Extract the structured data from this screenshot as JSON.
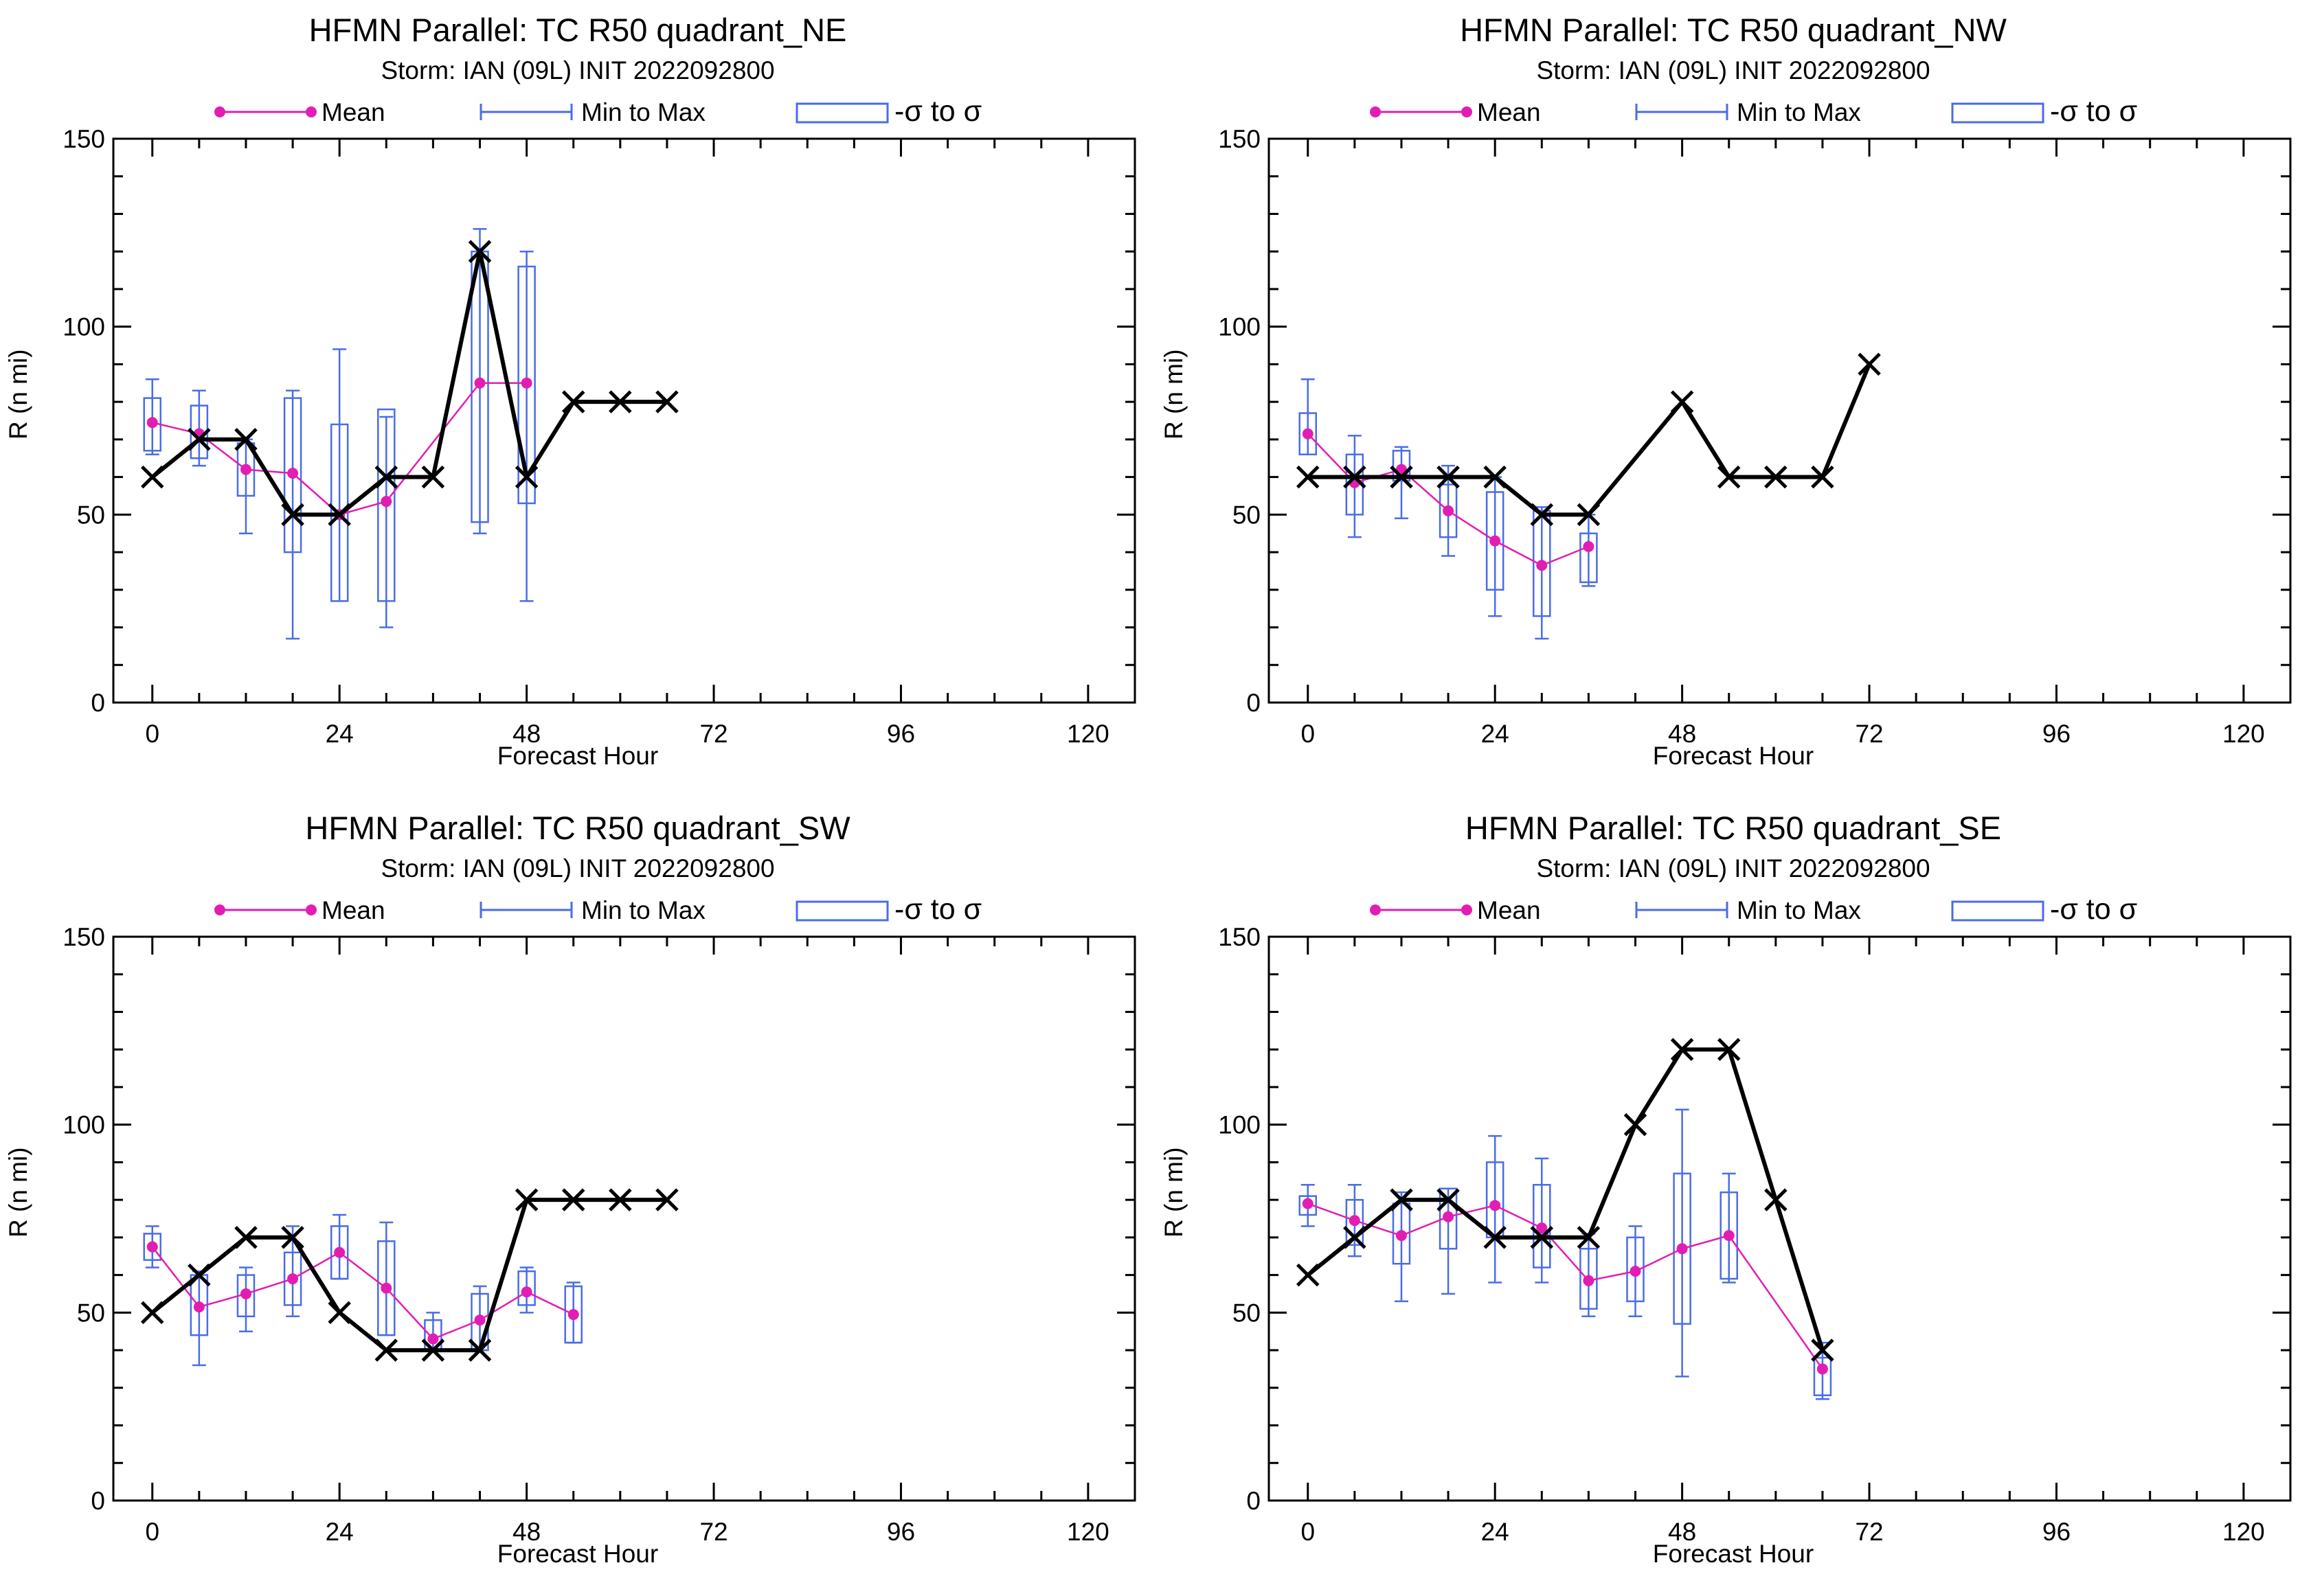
{
  "colors": {
    "mean": "#e21db4",
    "minmax": "#4a6ce6",
    "obs": "#000000",
    "axis": "#000000"
  },
  "legend": {
    "mean": "Mean",
    "minmax": "Min to Max",
    "sigma": "-σ to σ"
  },
  "panels": [
    {
      "title": "HFMN Parallel: TC  R50 quadrant_NE",
      "subtitle": "Storm: IAN (09L) INIT 2022092800",
      "chart_data": {
        "type": "box-line",
        "xlabel": "Forecast Hour",
        "ylabel": "R (n mi)",
        "xlim": [
          -5,
          126
        ],
        "ylim": [
          0,
          150
        ],
        "xticks": [
          0,
          24,
          48,
          72,
          96,
          120
        ],
        "yticks": [
          0,
          50,
          100,
          150
        ],
        "mean": {
          "x": [
            0,
            6,
            12,
            18,
            24,
            30,
            42,
            48
          ],
          "y": [
            74.5,
            71.5,
            62,
            61,
            50,
            53.5,
            85,
            85
          ]
        },
        "boxes": [
          {
            "x": 0,
            "min": 66,
            "max": 86,
            "lo": 67,
            "hi": 81
          },
          {
            "x": 6,
            "min": 63,
            "max": 83,
            "lo": 65,
            "hi": 79
          },
          {
            "x": 12,
            "min": 45,
            "max": 70,
            "lo": 55,
            "hi": 69
          },
          {
            "x": 18,
            "min": 17,
            "max": 83,
            "lo": 40,
            "hi": 81
          },
          {
            "x": 24,
            "min": 27,
            "max": 94,
            "lo": 27,
            "hi": 74
          },
          {
            "x": 30,
            "min": 20,
            "max": 76,
            "lo": 27,
            "hi": 78
          },
          {
            "x": 42,
            "min": 45,
            "max": 126,
            "lo": 48,
            "hi": 120
          },
          {
            "x": 48,
            "min": 27,
            "max": 120,
            "lo": 53,
            "hi": 116
          }
        ],
        "obs": {
          "x": [
            0,
            6,
            12,
            18,
            24,
            30,
            36,
            42,
            48,
            54,
            60,
            66
          ],
          "y": [
            60,
            70,
            70,
            50,
            50,
            60,
            60,
            120,
            60,
            80,
            80,
            80
          ]
        }
      }
    },
    {
      "title": "HFMN Parallel: TC  R50 quadrant_NW",
      "subtitle": "Storm: IAN (09L) INIT 2022092800",
      "chart_data": {
        "type": "box-line",
        "xlabel": "Forecast Hour",
        "ylabel": "R (n mi)",
        "xlim": [
          -5,
          126
        ],
        "ylim": [
          0,
          150
        ],
        "xticks": [
          0,
          24,
          48,
          72,
          96,
          120
        ],
        "yticks": [
          0,
          50,
          100,
          150
        ],
        "mean": {
          "x": [
            0,
            6,
            12,
            18,
            24,
            30,
            36
          ],
          "y": [
            71.5,
            58.5,
            62,
            51,
            43,
            36.5,
            41.5
          ]
        },
        "boxes": [
          {
            "x": 0,
            "min": 66,
            "max": 86,
            "lo": 66,
            "hi": 77
          },
          {
            "x": 6,
            "min": 44,
            "max": 71,
            "lo": 50,
            "hi": 66
          },
          {
            "x": 12,
            "min": 49,
            "max": 68,
            "lo": 59,
            "hi": 67
          },
          {
            "x": 18,
            "min": 39,
            "max": 63,
            "lo": 44,
            "hi": 58
          },
          {
            "x": 24,
            "min": 23,
            "max": 60,
            "lo": 30,
            "hi": 56
          },
          {
            "x": 30,
            "min": 17,
            "max": 52,
            "lo": 23,
            "hi": 51
          },
          {
            "x": 36,
            "min": 31,
            "max": 50,
            "lo": 32,
            "hi": 45
          }
        ],
        "obs": {
          "x": [
            0,
            6,
            12,
            18,
            24,
            30,
            36,
            48,
            54,
            60,
            66,
            72
          ],
          "y": [
            60,
            60,
            60,
            60,
            60,
            50,
            50,
            80,
            60,
            60,
            60,
            90
          ]
        }
      }
    },
    {
      "title": "HFMN Parallel: TC  R50 quadrant_SW",
      "subtitle": "Storm: IAN (09L) INIT 2022092800",
      "chart_data": {
        "type": "box-line",
        "xlabel": "Forecast Hour",
        "ylabel": "R (n mi)",
        "xlim": [
          -5,
          126
        ],
        "ylim": [
          0,
          150
        ],
        "xticks": [
          0,
          24,
          48,
          72,
          96,
          120
        ],
        "yticks": [
          0,
          50,
          100,
          150
        ],
        "mean": {
          "x": [
            0,
            6,
            12,
            18,
            24,
            30,
            36,
            42,
            48,
            54
          ],
          "y": [
            67.5,
            51.5,
            55,
            59,
            66,
            56.5,
            43,
            48,
            55.5,
            49.5
          ]
        },
        "boxes": [
          {
            "x": 0,
            "min": 62,
            "max": 73,
            "lo": 64,
            "hi": 71
          },
          {
            "x": 6,
            "min": 36,
            "max": 61,
            "lo": 44,
            "hi": 60
          },
          {
            "x": 12,
            "min": 45,
            "max": 62,
            "lo": 49,
            "hi": 60
          },
          {
            "x": 18,
            "min": 49,
            "max": 73,
            "lo": 52,
            "hi": 66
          },
          {
            "x": 24,
            "min": 59,
            "max": 76,
            "lo": 59,
            "hi": 73
          },
          {
            "x": 30,
            "min": 44,
            "max": 74,
            "lo": 44,
            "hi": 69
          },
          {
            "x": 36,
            "min": 40,
            "max": 50,
            "lo": 40,
            "hi": 48
          },
          {
            "x": 42,
            "min": 40,
            "max": 57,
            "lo": 40,
            "hi": 55
          },
          {
            "x": 48,
            "min": 50,
            "max": 62,
            "lo": 52,
            "hi": 61
          },
          {
            "x": 54,
            "min": 42,
            "max": 58,
            "lo": 42,
            "hi": 57
          }
        ],
        "obs": {
          "x": [
            0,
            6,
            12,
            18,
            24,
            30,
            36,
            42,
            48,
            54,
            60,
            66
          ],
          "y": [
            50,
            60,
            70,
            70,
            50,
            40,
            40,
            40,
            80,
            80,
            80,
            80
          ]
        }
      }
    },
    {
      "title": "HFMN Parallel: TC  R50 quadrant_SE",
      "subtitle": "Storm: IAN (09L) INIT 2022092800",
      "chart_data": {
        "type": "box-line",
        "xlabel": "Forecast Hour",
        "ylabel": "R (n mi)",
        "xlim": [
          -5,
          126
        ],
        "ylim": [
          0,
          150
        ],
        "xticks": [
          0,
          24,
          48,
          72,
          96,
          120
        ],
        "yticks": [
          0,
          50,
          100,
          150
        ],
        "mean": {
          "x": [
            0,
            6,
            12,
            18,
            24,
            30,
            36,
            42,
            48,
            54,
            66
          ],
          "y": [
            79,
            74.5,
            70.5,
            75.5,
            78.5,
            72.5,
            58.5,
            61,
            67,
            70.5,
            35
          ]
        },
        "boxes": [
          {
            "x": 0,
            "min": 73,
            "max": 84,
            "lo": 76,
            "hi": 81
          },
          {
            "x": 6,
            "min": 65,
            "max": 84,
            "lo": 68,
            "hi": 80
          },
          {
            "x": 12,
            "min": 53,
            "max": 82,
            "lo": 63,
            "hi": 79
          },
          {
            "x": 18,
            "min": 55,
            "max": 83,
            "lo": 67,
            "hi": 83
          },
          {
            "x": 24,
            "min": 58,
            "max": 97,
            "lo": 70,
            "hi": 90
          },
          {
            "x": 30,
            "min": 58,
            "max": 91,
            "lo": 62,
            "hi": 84
          },
          {
            "x": 36,
            "min": 49,
            "max": 71,
            "lo": 51,
            "hi": 67
          },
          {
            "x": 42,
            "min": 49,
            "max": 73,
            "lo": 53,
            "hi": 70
          },
          {
            "x": 48,
            "min": 33,
            "max": 104,
            "lo": 47,
            "hi": 87
          },
          {
            "x": 54,
            "min": 58,
            "max": 87,
            "lo": 59,
            "hi": 82
          },
          {
            "x": 66,
            "min": 27,
            "max": 42,
            "lo": 28,
            "hi": 38
          }
        ],
        "obs": {
          "x": [
            0,
            6,
            12,
            18,
            24,
            30,
            36,
            42,
            48,
            54,
            60,
            66
          ],
          "y": [
            60,
            70,
            80,
            80,
            70,
            70,
            70,
            100,
            120,
            120,
            80,
            40
          ]
        }
      }
    }
  ]
}
